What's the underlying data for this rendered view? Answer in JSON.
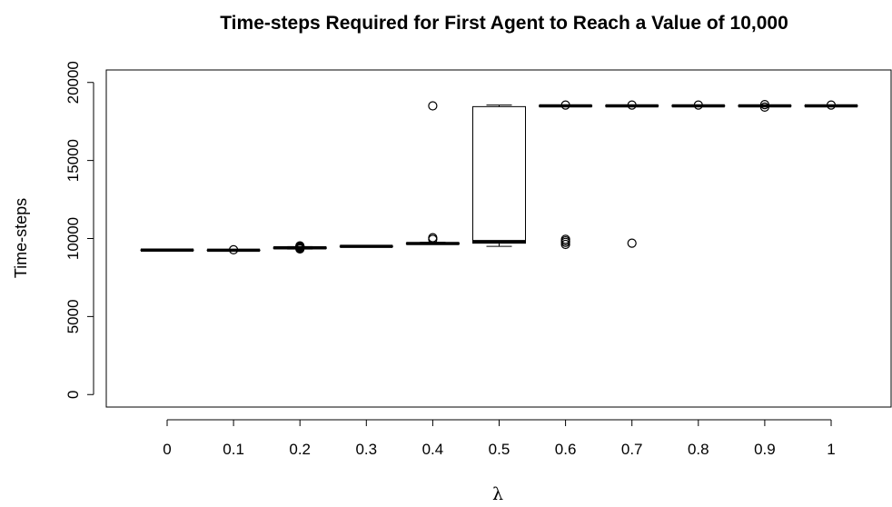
{
  "chart_data": {
    "type": "box",
    "title": "Time-steps Required for First Agent to Reach a Value of 10,000",
    "xlabel": "λ",
    "ylabel": "Time-steps",
    "ylim": [
      -800,
      20800
    ],
    "yticks": [
      0,
      5000,
      10000,
      15000,
      20000
    ],
    "categories": [
      "0",
      "0.1",
      "0.2",
      "0.3",
      "0.4",
      "0.5",
      "0.6",
      "0.7",
      "0.8",
      "0.9",
      "1"
    ],
    "boxes": [
      {
        "category": "0",
        "min": 9240,
        "q1": 9250,
        "median": 9260,
        "q3": 9270,
        "max": 9280,
        "outliers": []
      },
      {
        "category": "0.1",
        "min": 9230,
        "q1": 9240,
        "median": 9250,
        "q3": 9260,
        "max": 9270,
        "outliers": [
          9280
        ]
      },
      {
        "category": "0.2",
        "min": 9320,
        "q1": 9360,
        "median": 9400,
        "q3": 9440,
        "max": 9480,
        "outliers": [
          9330,
          9380,
          9430,
          9470,
          9500,
          9530
        ]
      },
      {
        "category": "0.3",
        "min": 9480,
        "q1": 9490,
        "median": 9500,
        "q3": 9510,
        "max": 9520,
        "outliers": []
      },
      {
        "category": "0.4",
        "min": 9620,
        "q1": 9640,
        "median": 9680,
        "q3": 9720,
        "max": 9760,
        "outliers": [
          18500,
          10050,
          9950
        ]
      },
      {
        "category": "0.5",
        "min": 9500,
        "q1": 9700,
        "median": 9800,
        "q3": 18450,
        "max": 18550,
        "outliers": []
      },
      {
        "category": "0.6",
        "min": 18450,
        "q1": 18470,
        "median": 18500,
        "q3": 18520,
        "max": 18540,
        "outliers": [
          18550,
          9950,
          9850,
          9750,
          9620
        ]
      },
      {
        "category": "0.7",
        "min": 18460,
        "q1": 18480,
        "median": 18500,
        "q3": 18520,
        "max": 18540,
        "outliers": [
          18550,
          9700
        ]
      },
      {
        "category": "0.8",
        "min": 18460,
        "q1": 18480,
        "median": 18500,
        "q3": 18520,
        "max": 18540,
        "outliers": [
          18550
        ]
      },
      {
        "category": "0.9",
        "min": 18460,
        "q1": 18480,
        "median": 18500,
        "q3": 18520,
        "max": 18540,
        "outliers": [
          18580,
          18420
        ]
      },
      {
        "category": "1",
        "min": 18460,
        "q1": 18480,
        "median": 18500,
        "q3": 18520,
        "max": 18540,
        "outliers": [
          18550
        ]
      }
    ]
  }
}
